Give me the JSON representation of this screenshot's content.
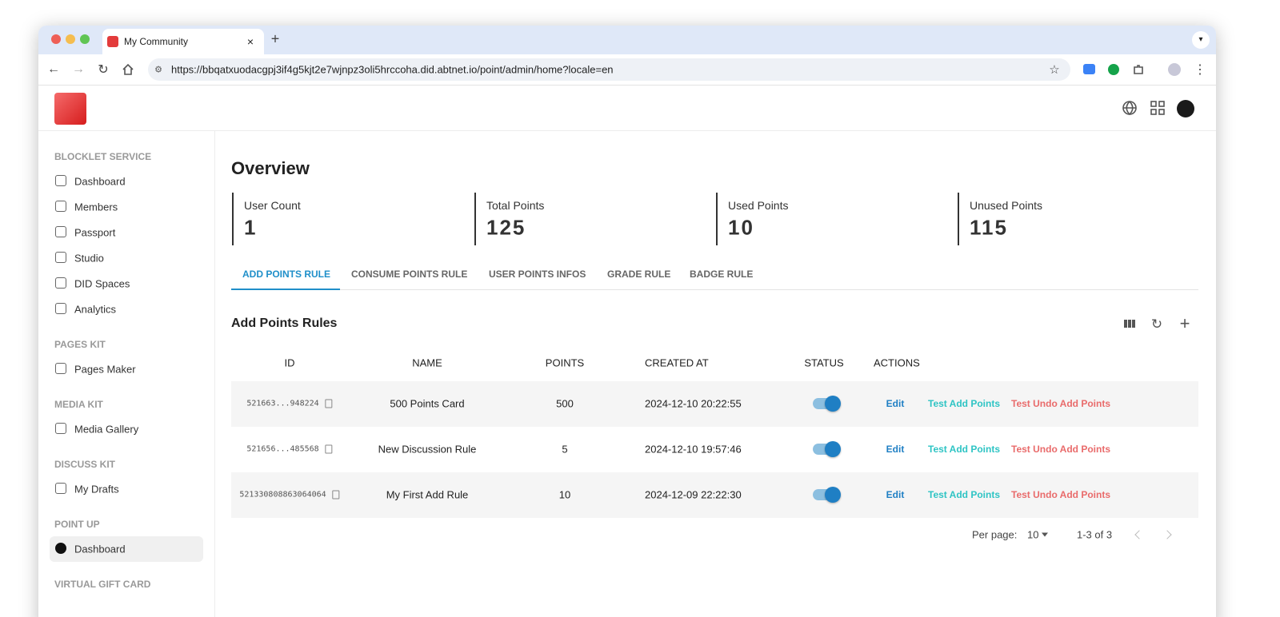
{
  "browser": {
    "tab_title": "My Community",
    "url": "https://bbqatxuodacgpj3if4g5kjt2e7wjnpz3oli5hrccoha.did.abtnet.io/point/admin/home?locale=en"
  },
  "sidebar": {
    "sections": [
      {
        "title": "BLOCKLET SERVICE",
        "items": [
          "Dashboard",
          "Members",
          "Passport",
          "Studio",
          "DID Spaces",
          "Analytics"
        ]
      },
      {
        "title": "PAGES KIT",
        "items": [
          "Pages Maker"
        ]
      },
      {
        "title": "MEDIA KIT",
        "items": [
          "Media Gallery"
        ]
      },
      {
        "title": "DISCUSS KIT",
        "items": [
          "My Drafts"
        ]
      },
      {
        "title": "POINT UP",
        "items": [
          "Dashboard"
        ]
      },
      {
        "title": "VIRTUAL GIFT CARD",
        "items": []
      }
    ]
  },
  "overview": {
    "title": "Overview",
    "stats": [
      {
        "label": "User Count",
        "value": 1
      },
      {
        "label": "Total Points",
        "value": 125
      },
      {
        "label": "Used Points",
        "value": 10
      },
      {
        "label": "Unused Points",
        "value": 115
      }
    ]
  },
  "tabs": [
    "ADD POINTS RULE",
    "CONSUME POINTS RULE",
    "USER POINTS INFOS",
    "GRADE RULE",
    "BADGE RULE"
  ],
  "table": {
    "title": "Add Points Rules",
    "columns": [
      "ID",
      "NAME",
      "POINTS",
      "CREATED AT",
      "STATUS",
      "ACTIONS"
    ],
    "rows": [
      [
        "521663...948224",
        "500 Points Card",
        500,
        "2024-12-10 20:22:55"
      ],
      [
        "521656...485568",
        "New Discussion Rule",
        5,
        "2024-12-10 19:57:46"
      ],
      [
        "521330808863064064",
        "My First Add Rule",
        10,
        "2024-12-09 22:22:30"
      ]
    ],
    "actions": [
      "Edit",
      "Test Add Points",
      "Test Undo Add Points"
    ]
  },
  "pagination": {
    "per_page_label": "Per page:",
    "per_page": 10,
    "range": "1-3 of 3"
  }
}
